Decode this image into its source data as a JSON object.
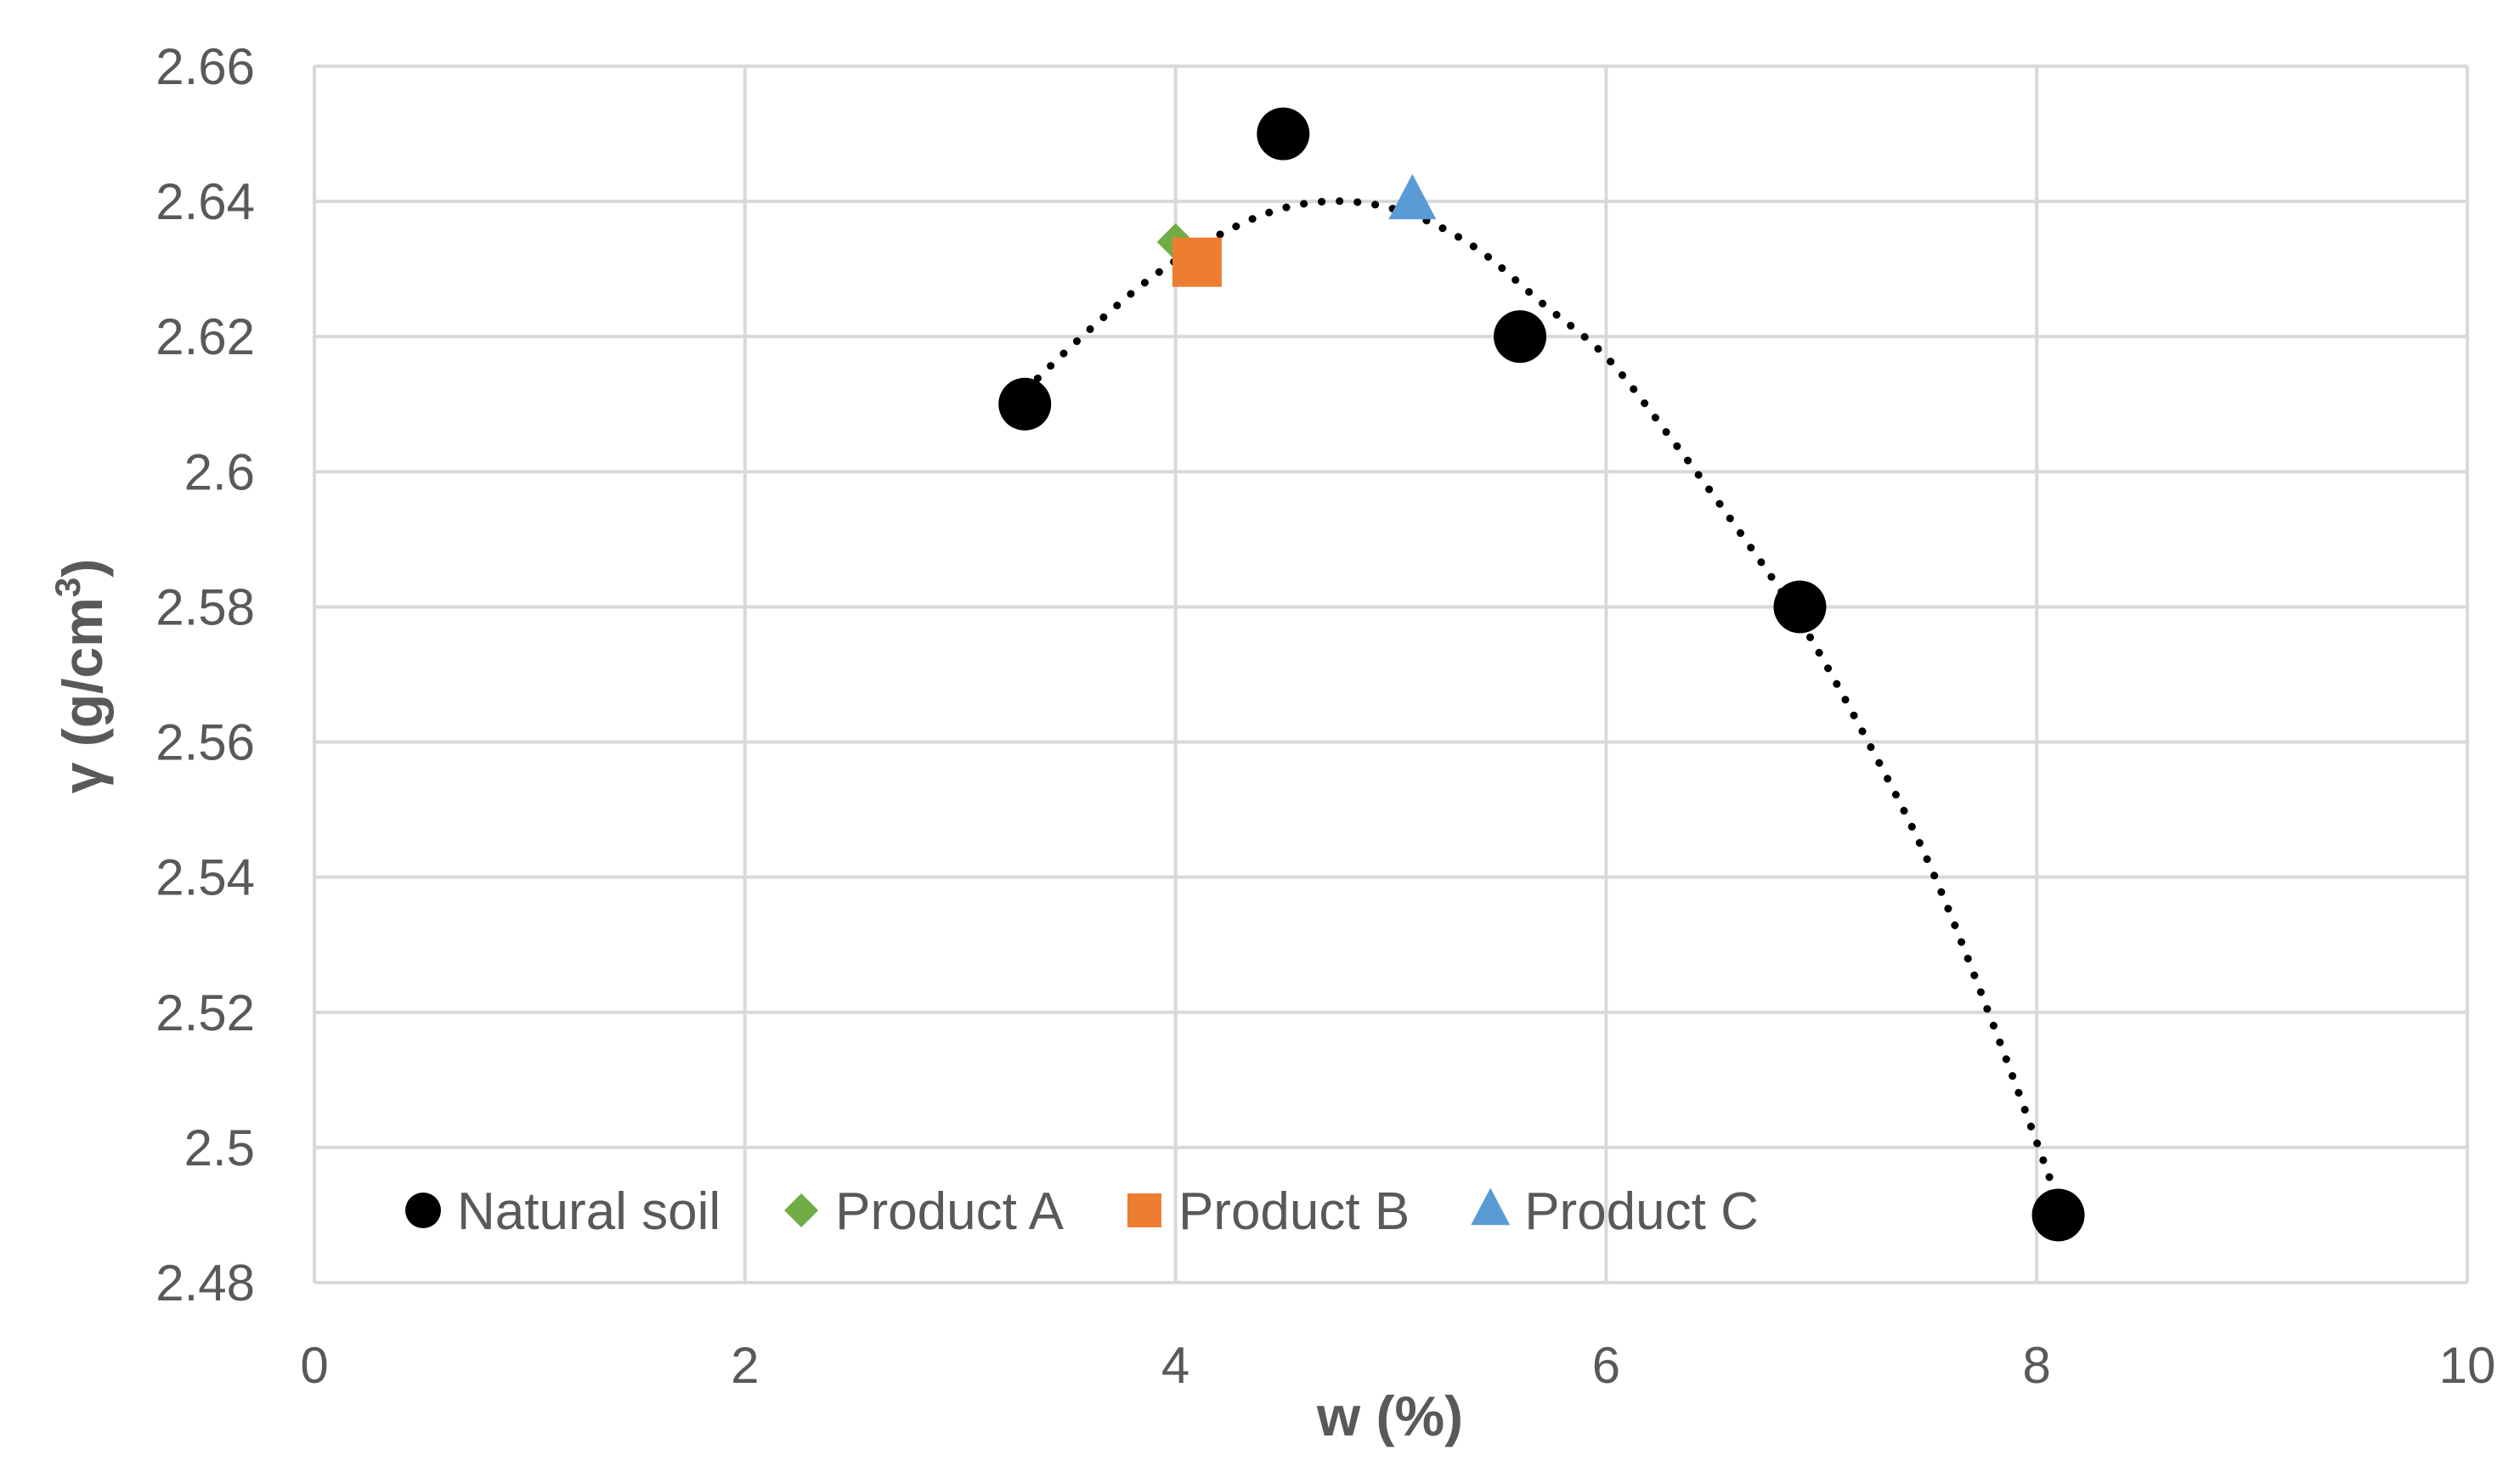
{
  "chart_data": {
    "type": "scatter",
    "title": "",
    "xlabel": "w (%)",
    "ylabel_parts": [
      "γ (g/cm",
      "3",
      ")"
    ],
    "xlim": [
      0,
      10
    ],
    "ylim": [
      2.48,
      2.66
    ],
    "x_ticks": [
      0,
      2,
      4,
      6,
      8,
      10
    ],
    "x_tick_labels": [
      "0",
      "2",
      "4",
      "6",
      "8",
      "10"
    ],
    "y_ticks": [
      2.48,
      2.5,
      2.52,
      2.54,
      2.56,
      2.58,
      2.6,
      2.62,
      2.64,
      2.66
    ],
    "y_tick_labels": [
      "2.48",
      "2.5",
      "2.52",
      "2.54",
      "2.56",
      "2.58",
      "2.6",
      "2.62",
      "2.64",
      "2.66"
    ],
    "grid": true,
    "legend_position": "bottom-inside",
    "series": [
      {
        "name": "Natural soil",
        "marker": "circle",
        "color": "#000000",
        "points": [
          {
            "x": 3.3,
            "y": 2.61
          },
          {
            "x": 4.5,
            "y": 2.65
          },
          {
            "x": 5.6,
            "y": 2.62
          },
          {
            "x": 6.9,
            "y": 2.58
          },
          {
            "x": 8.1,
            "y": 2.49
          }
        ]
      },
      {
        "name": "Product A",
        "marker": "diamond",
        "color": "#70ad47",
        "points": [
          {
            "x": 4.0,
            "y": 2.634
          }
        ]
      },
      {
        "name": "Product B",
        "marker": "square",
        "color": "#ed7d31",
        "points": [
          {
            "x": 4.1,
            "y": 2.631
          }
        ]
      },
      {
        "name": "Product C",
        "marker": "triangle",
        "color": "#5b9bd5",
        "points": [
          {
            "x": 5.1,
            "y": 2.64
          }
        ]
      }
    ],
    "trendline": {
      "type": "polynomial",
      "series": "Natural soil",
      "style": "dotted",
      "color": "#000000",
      "x_range": [
        3.3,
        8.1
      ],
      "points": [
        {
          "x": 3.3,
          "y": 2.612
        },
        {
          "x": 3.6,
          "y": 2.621
        },
        {
          "x": 3.9,
          "y": 2.629
        },
        {
          "x": 4.2,
          "y": 2.635
        },
        {
          "x": 4.5,
          "y": 2.639
        },
        {
          "x": 4.8,
          "y": 2.64
        },
        {
          "x": 5.1,
          "y": 2.638
        },
        {
          "x": 5.4,
          "y": 2.633
        },
        {
          "x": 5.7,
          "y": 2.625
        },
        {
          "x": 6.0,
          "y": 2.617
        },
        {
          "x": 6.3,
          "y": 2.605
        },
        {
          "x": 6.6,
          "y": 2.592
        },
        {
          "x": 6.9,
          "y": 2.578
        },
        {
          "x": 7.2,
          "y": 2.561
        },
        {
          "x": 7.5,
          "y": 2.542
        },
        {
          "x": 7.8,
          "y": 2.518
        },
        {
          "x": 8.1,
          "y": 2.492
        }
      ]
    }
  }
}
